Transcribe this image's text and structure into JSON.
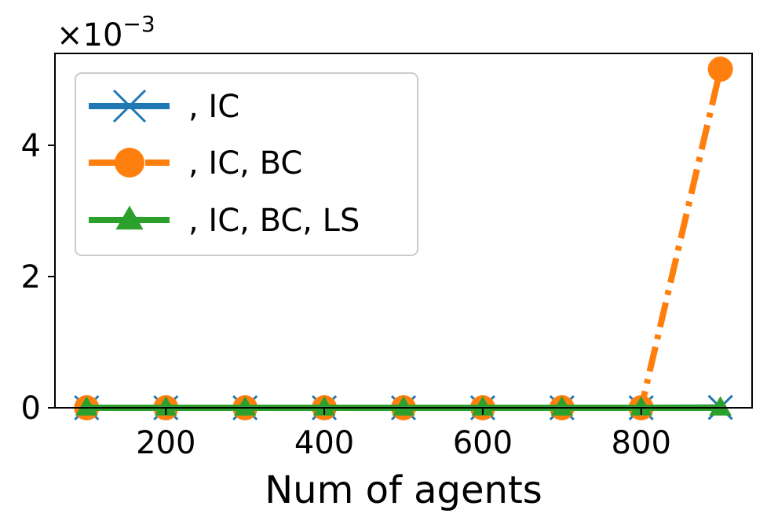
{
  "chart_data": {
    "type": "line",
    "title": "",
    "xlabel": "Num of agents",
    "ylabel": "",
    "y_scale_multiplier": "×10",
    "y_scale_exponent": "−3",
    "x": [
      100,
      200,
      300,
      400,
      500,
      600,
      700,
      800,
      900
    ],
    "xlim": [
      60,
      940
    ],
    "ylim": [
      0,
      0.0054
    ],
    "x_ticks": [
      200,
      400,
      600,
      800
    ],
    "x_tick_labels": [
      "200",
      "400",
      "600",
      "800"
    ],
    "y_ticks": [
      0,
      0.002,
      0.004
    ],
    "y_tick_labels": [
      "0",
      "2",
      "4"
    ],
    "grid": false,
    "legend_position": "top-left",
    "series": [
      {
        "name": ", IC",
        "color": "#1f77b4",
        "marker": "x",
        "linestyle": "solid",
        "values": [
          0,
          0,
          0,
          0,
          0,
          0,
          0,
          0,
          5e-06
        ]
      },
      {
        "name": ", IC, BC",
        "color": "#ff7f0e",
        "marker": "circle",
        "linestyle": "dash-dot",
        "values": [
          0,
          0,
          0,
          0,
          0,
          0,
          0,
          0,
          0.00516
        ]
      },
      {
        "name": ", IC, BC, LS",
        "color": "#2ca02c",
        "marker": "triangle",
        "linestyle": "solid",
        "values": [
          0,
          0,
          0,
          0,
          0,
          0,
          0,
          0,
          0
        ]
      }
    ]
  }
}
